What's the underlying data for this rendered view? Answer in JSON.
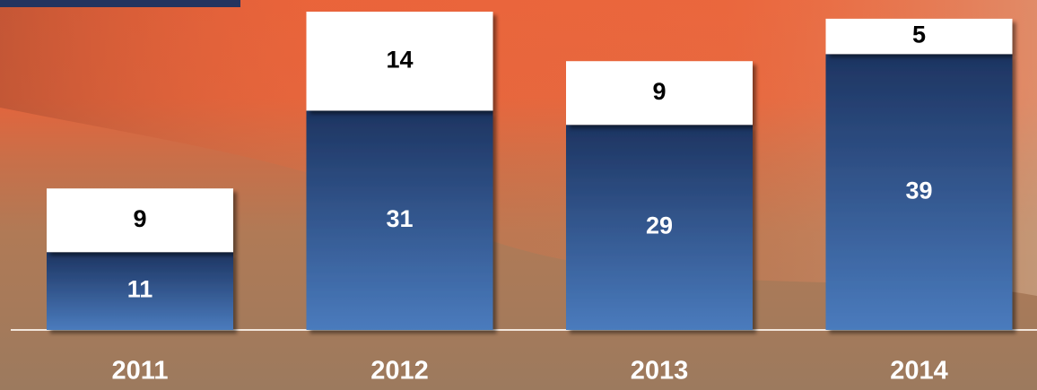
{
  "chart_data": {
    "type": "stacked_bar",
    "categories": [
      "2011",
      "2012",
      "2013",
      "2014"
    ],
    "series": [
      {
        "color": "#4a7bbd",
        "label_color": "#ffffff",
        "values": [
          11,
          31,
          29,
          39
        ]
      },
      {
        "color": "#ffffff",
        "label_color": "#000000",
        "values": [
          9,
          14,
          9,
          5
        ]
      }
    ]
  }
}
